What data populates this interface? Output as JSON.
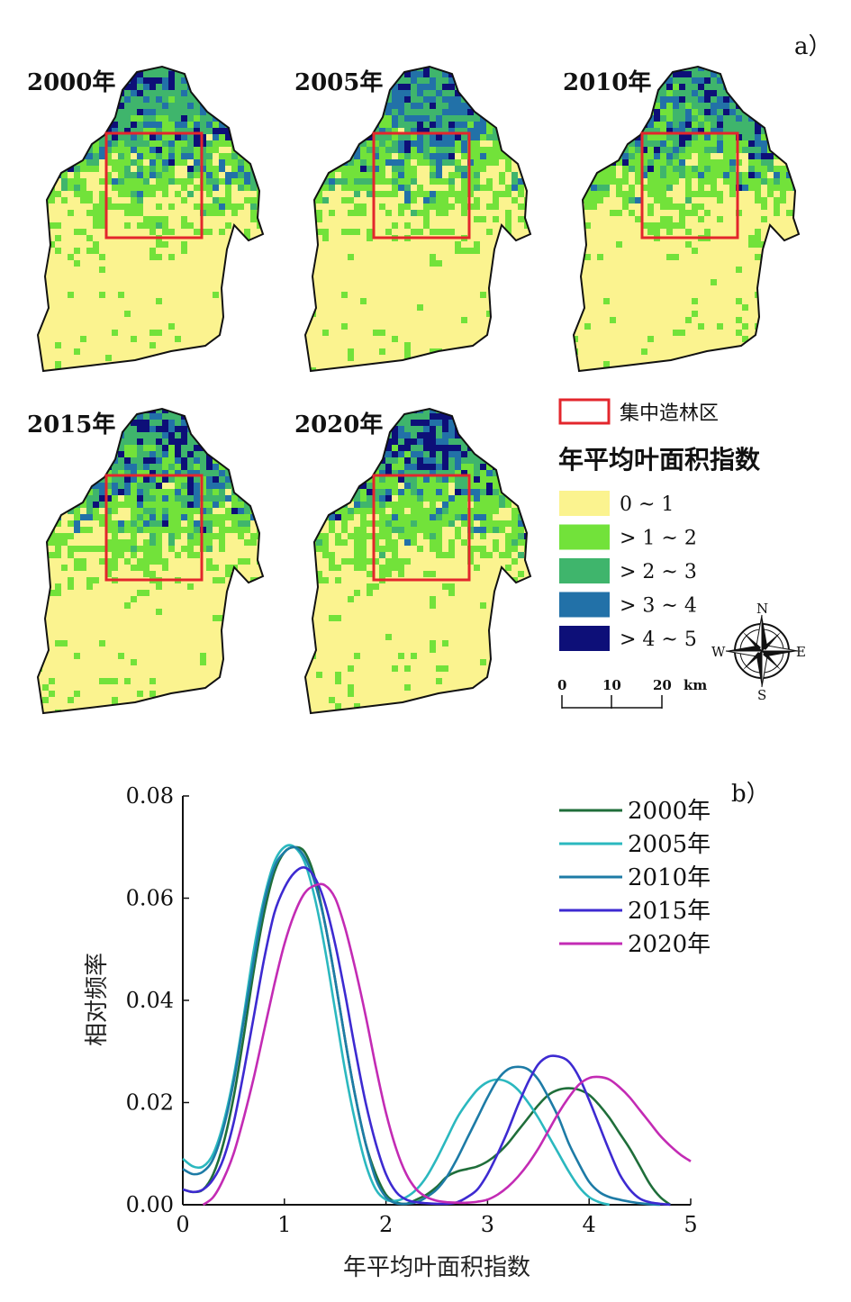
{
  "panel_a": {
    "label": "a）",
    "maps": [
      {
        "year_label": "2000年",
        "high_share": 0.22,
        "mid_share": 0.35
      },
      {
        "year_label": "2005年",
        "high_share": 0.2,
        "mid_share": 0.38
      },
      {
        "year_label": "2010年",
        "high_share": 0.28,
        "mid_share": 0.34
      },
      {
        "year_label": "2015年",
        "high_share": 0.32,
        "mid_share": 0.36
      },
      {
        "year_label": "2020年",
        "high_share": 0.44,
        "mid_share": 0.34
      }
    ],
    "afforestation_label": "集中造林区",
    "afforestation_color": "#e3262c",
    "legend_title": "年平均叶面积指数",
    "classes": [
      {
        "label": "0 ~ 1",
        "color": "#fbf38f"
      },
      {
        "label": "> 1 ~ 2",
        "color": "#72e23a"
      },
      {
        "label": "> 2 ~ 3",
        "color": "#3fb56c"
      },
      {
        "label": "> 3 ~ 4",
        "color": "#2271a8"
      },
      {
        "label": "> 4 ~ 5",
        "color": "#0d0f78"
      }
    ],
    "scale_bar": {
      "ticks": [
        "0",
        "10",
        "20"
      ],
      "unit": "km"
    },
    "compass": {
      "n": "N",
      "s": "S",
      "e": "E",
      "w": "W"
    }
  },
  "chart_data": {
    "type": "line",
    "panel_label": "b）",
    "xlabel": "年平均叶面积指数",
    "ylabel": "相对频率",
    "xlim": [
      0,
      5
    ],
    "ylim": [
      0,
      0.08
    ],
    "xticks": [
      "0",
      "1",
      "2",
      "3",
      "4",
      "5"
    ],
    "yticks": [
      "0.00",
      "0.02",
      "0.04",
      "0.06",
      "0.08"
    ],
    "grid": false,
    "legend_position": "top-right",
    "series": [
      {
        "name": "2000年",
        "color": "#1f6e3a",
        "x": [
          0,
          0.1,
          0.2,
          0.3,
          0.4,
          0.5,
          0.6,
          0.7,
          0.8,
          0.9,
          1.0,
          1.1,
          1.2,
          1.3,
          1.4,
          1.5,
          1.6,
          1.7,
          1.8,
          1.9,
          2.0,
          2.1,
          2.2,
          2.3,
          2.4,
          2.5,
          2.6,
          2.7,
          2.8,
          2.9,
          3.0,
          3.1,
          3.2,
          3.3,
          3.4,
          3.5,
          3.6,
          3.7,
          3.8,
          3.9,
          4.0,
          4.1,
          4.2,
          4.3,
          4.4,
          4.5,
          4.6,
          4.7,
          4.8
        ],
        "y": [
          0.003,
          0.0025,
          0.003,
          0.006,
          0.012,
          0.021,
          0.033,
          0.046,
          0.057,
          0.065,
          0.069,
          0.07,
          0.069,
          0.064,
          0.055,
          0.044,
          0.032,
          0.021,
          0.012,
          0.006,
          0.002,
          0.0005,
          0.0002,
          0.001,
          0.002,
          0.0035,
          0.0055,
          0.0065,
          0.007,
          0.0075,
          0.0085,
          0.01,
          0.012,
          0.0145,
          0.017,
          0.0195,
          0.0215,
          0.0225,
          0.0228,
          0.0225,
          0.0215,
          0.0195,
          0.017,
          0.014,
          0.011,
          0.0075,
          0.004,
          0.0015,
          0.0
        ]
      },
      {
        "name": "2005年",
        "color": "#2bb8bf",
        "x": [
          0,
          0.1,
          0.2,
          0.3,
          0.4,
          0.5,
          0.6,
          0.7,
          0.8,
          0.9,
          1.0,
          1.1,
          1.2,
          1.3,
          1.4,
          1.5,
          1.6,
          1.7,
          1.8,
          1.9,
          2.0,
          2.1,
          2.2,
          2.3,
          2.4,
          2.5,
          2.6,
          2.7,
          2.8,
          2.9,
          3.0,
          3.1,
          3.2,
          3.3,
          3.4,
          3.5,
          3.6,
          3.7,
          3.8,
          3.9,
          4.0,
          4.1,
          4.2
        ],
        "y": [
          0.009,
          0.0075,
          0.0075,
          0.01,
          0.016,
          0.025,
          0.037,
          0.05,
          0.06,
          0.067,
          0.07,
          0.07,
          0.067,
          0.06,
          0.05,
          0.038,
          0.026,
          0.016,
          0.008,
          0.003,
          0.001,
          0.0008,
          0.0015,
          0.003,
          0.0055,
          0.009,
          0.013,
          0.017,
          0.02,
          0.0225,
          0.024,
          0.0245,
          0.024,
          0.0225,
          0.02,
          0.017,
          0.0135,
          0.01,
          0.0065,
          0.0035,
          0.0015,
          0.0005,
          0.0
        ]
      },
      {
        "name": "2010年",
        "color": "#1d7ba6",
        "x": [
          0,
          0.1,
          0.2,
          0.3,
          0.4,
          0.5,
          0.6,
          0.7,
          0.8,
          0.9,
          1.0,
          1.1,
          1.2,
          1.3,
          1.4,
          1.5,
          1.6,
          1.7,
          1.8,
          1.9,
          2.0,
          2.1,
          2.2,
          2.3,
          2.4,
          2.5,
          2.6,
          2.7,
          2.8,
          2.9,
          3.0,
          3.1,
          3.2,
          3.3,
          3.4,
          3.5,
          3.6,
          3.7,
          3.8,
          3.9,
          4.0,
          4.1,
          4.2,
          4.3,
          4.4,
          4.5,
          4.6,
          4.7
        ],
        "y": [
          0.007,
          0.006,
          0.0065,
          0.009,
          0.015,
          0.024,
          0.036,
          0.048,
          0.059,
          0.066,
          0.069,
          0.07,
          0.068,
          0.063,
          0.055,
          0.044,
          0.032,
          0.021,
          0.012,
          0.005,
          0.0015,
          0.0003,
          0.0002,
          0.0005,
          0.0015,
          0.003,
          0.0055,
          0.009,
          0.013,
          0.017,
          0.021,
          0.0245,
          0.0265,
          0.027,
          0.0265,
          0.0245,
          0.021,
          0.017,
          0.012,
          0.008,
          0.0045,
          0.0025,
          0.0015,
          0.001,
          0.0006,
          0.0003,
          0.0001,
          0.0
        ]
      },
      {
        "name": "2015年",
        "color": "#3d2ad1",
        "x": [
          0,
          0.1,
          0.2,
          0.3,
          0.4,
          0.5,
          0.6,
          0.7,
          0.8,
          0.9,
          1.0,
          1.1,
          1.2,
          1.3,
          1.4,
          1.5,
          1.6,
          1.7,
          1.8,
          1.9,
          2.0,
          2.1,
          2.2,
          2.3,
          2.4,
          2.5,
          2.6,
          2.7,
          2.8,
          2.9,
          3.0,
          3.1,
          3.2,
          3.3,
          3.4,
          3.5,
          3.6,
          3.7,
          3.8,
          3.9,
          4.0,
          4.1,
          4.2,
          4.3,
          4.4,
          4.5,
          4.6,
          4.7,
          4.8
        ],
        "y": [
          0.003,
          0.0025,
          0.003,
          0.005,
          0.009,
          0.016,
          0.026,
          0.037,
          0.048,
          0.057,
          0.062,
          0.065,
          0.066,
          0.064,
          0.059,
          0.051,
          0.041,
          0.03,
          0.02,
          0.012,
          0.006,
          0.0025,
          0.001,
          0.0005,
          0.0003,
          0.0002,
          0.0002,
          0.0005,
          0.0015,
          0.003,
          0.006,
          0.01,
          0.0145,
          0.0195,
          0.024,
          0.0275,
          0.029,
          0.029,
          0.028,
          0.025,
          0.0205,
          0.0155,
          0.0105,
          0.006,
          0.003,
          0.0012,
          0.0005,
          0.0002,
          0.0
        ]
      },
      {
        "name": "2020年",
        "color": "#c32bb4",
        "x": [
          0.2,
          0.3,
          0.4,
          0.5,
          0.6,
          0.7,
          0.8,
          0.9,
          1.0,
          1.1,
          1.2,
          1.3,
          1.4,
          1.5,
          1.6,
          1.7,
          1.8,
          1.9,
          2.0,
          2.1,
          2.2,
          2.3,
          2.4,
          2.5,
          2.6,
          2.7,
          2.8,
          2.9,
          3.0,
          3.1,
          3.2,
          3.3,
          3.4,
          3.5,
          3.6,
          3.7,
          3.8,
          3.9,
          4.0,
          4.1,
          4.2,
          4.3,
          4.4,
          4.5,
          4.6,
          4.7,
          4.8,
          4.9,
          5.0
        ],
        "y": [
          0.0,
          0.0015,
          0.005,
          0.01,
          0.017,
          0.025,
          0.034,
          0.043,
          0.051,
          0.057,
          0.061,
          0.0625,
          0.0625,
          0.06,
          0.054,
          0.046,
          0.037,
          0.027,
          0.018,
          0.011,
          0.006,
          0.003,
          0.0015,
          0.0008,
          0.0005,
          0.0004,
          0.0004,
          0.0006,
          0.001,
          0.002,
          0.0035,
          0.0055,
          0.008,
          0.011,
          0.0145,
          0.018,
          0.021,
          0.0235,
          0.0248,
          0.025,
          0.0245,
          0.023,
          0.021,
          0.0185,
          0.016,
          0.0135,
          0.0115,
          0.0098,
          0.0085
        ]
      }
    ]
  }
}
